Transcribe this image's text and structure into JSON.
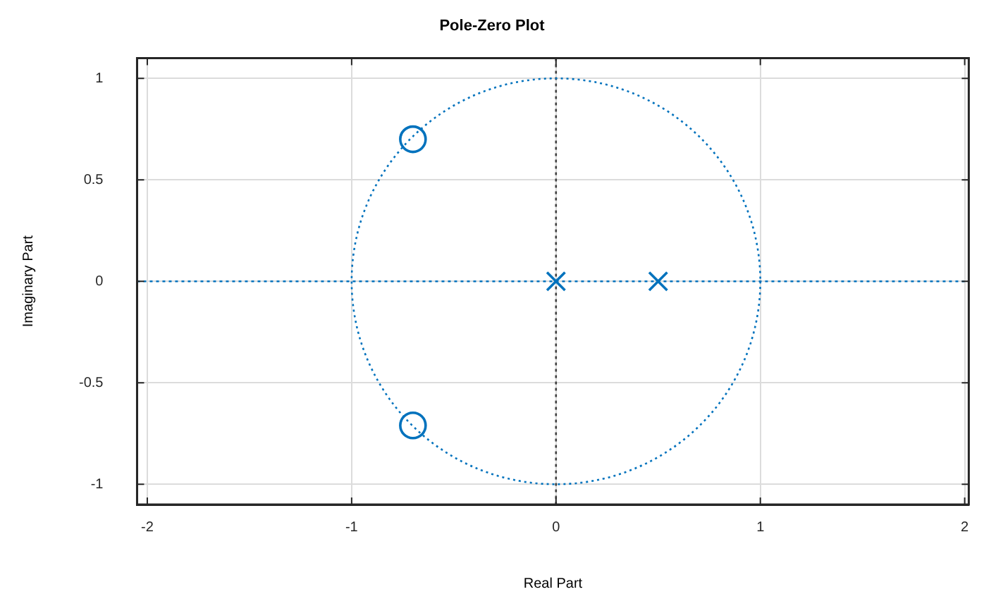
{
  "chart_data": {
    "type": "scatter",
    "title": "Pole-Zero Plot",
    "xlabel": "Real Part",
    "ylabel": "Imaginary Part",
    "xlim": [
      -2.05,
      2.02
    ],
    "ylim": [
      -1.1,
      1.1
    ],
    "xticks": [
      -2,
      -1,
      0,
      1,
      2
    ],
    "yticks": [
      -1,
      -0.5,
      0,
      0.5,
      1
    ],
    "grid": true,
    "legend": false,
    "series": [
      {
        "color": "#0072bd",
        "marker": "circle",
        "x": [
          -0.7,
          -0.7
        ],
        "values": [
          0.7,
          -0.71
        ]
      },
      {
        "color": "#0072bd",
        "marker": "cross",
        "x": [
          0,
          0.5
        ],
        "values": [
          0,
          0
        ]
      }
    ],
    "ref_lines": [
      {
        "axis": "x",
        "value": 0,
        "color": "#404040",
        "line_style": "dotted"
      },
      {
        "axis": "y",
        "value": 0,
        "color": "#0072bd",
        "line_style": "dotted"
      }
    ]
  }
}
